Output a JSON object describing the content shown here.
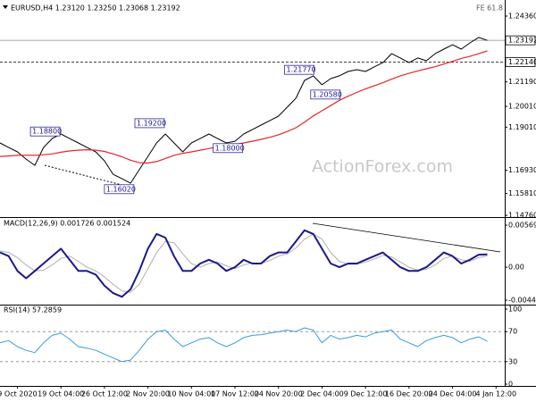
{
  "chart_data": [
    {
      "type": "line",
      "title": "EURUSD,H4  1.23120 1.23250 1.23068 1.23192",
      "note": "FE 61.8",
      "watermark": "ActionForex.com",
      "xlim": [
        0,
        58
      ],
      "ylim": [
        1.1472,
        1.2492
      ],
      "yticks": [
        {
          "value": 1.2436,
          "label": "1.24360"
        },
        {
          "value": 1.2119,
          "label": "1.21190"
        },
        {
          "value": 1.2001,
          "label": "1.20010"
        },
        {
          "value": 1.1901,
          "label": "1.19010"
        },
        {
          "value": 1.1693,
          "label": "1.16930"
        },
        {
          "value": 1.1581,
          "label": "1.15810"
        },
        {
          "value": 1.1476,
          "label": "1.14760"
        }
      ],
      "levels": [
        {
          "value": 1.23192,
          "label": "1.23192",
          "style": "solid"
        },
        {
          "value": 1.2214,
          "label": "1.22140",
          "style": "dashed"
        }
      ],
      "annotations": [
        {
          "x": 3.5,
          "value": 1.188,
          "label": "1.18800"
        },
        {
          "x": 12,
          "value": 1.1602,
          "label": "1.16020"
        },
        {
          "x": 15.5,
          "value": 1.192,
          "label": "1.19200"
        },
        {
          "x": 24.5,
          "value": 1.18,
          "label": "1.18000"
        },
        {
          "x": 32.7,
          "value": 1.2177,
          "label": "1.21770"
        },
        {
          "x": 35.7,
          "value": 1.2058,
          "label": "1.20580"
        }
      ],
      "series": [
        {
          "color": "#000000",
          "width": 1,
          "values": [
            1.1825,
            1.1803,
            1.1782,
            1.1747,
            1.1717,
            1.1803,
            1.1846,
            1.1868,
            1.1846,
            1.1825,
            1.1803,
            1.1782,
            1.1739,
            1.1674,
            1.1653,
            1.1631,
            1.1696,
            1.176,
            1.1825,
            1.1868,
            1.1825,
            1.1782,
            1.1825,
            1.1846,
            1.1868,
            1.1846,
            1.1825,
            1.1833,
            1.1868,
            1.1889,
            1.1911,
            1.1932,
            1.1954,
            1.1997,
            1.204,
            1.2126,
            1.2148,
            1.2105,
            1.2135,
            1.2148,
            1.2169,
            1.2178,
            1.2169,
            1.2191,
            1.2212,
            1.2255,
            1.2234,
            1.2212,
            1.2234,
            1.2221,
            1.2255,
            1.2277,
            1.2298,
            1.2277,
            1.2307,
            1.2333,
            1.2319
          ]
        },
        {
          "color": "#e8262a",
          "width": 1.2,
          "values": [
            1.176,
            1.1762,
            1.1765,
            1.1766,
            1.1765,
            1.1768,
            1.1772,
            1.178,
            1.1786,
            1.179,
            1.1792,
            1.179,
            1.1784,
            1.1772,
            1.1758,
            1.1742,
            1.173,
            1.1728,
            1.1735,
            1.175,
            1.1765,
            1.1775,
            1.1782,
            1.179,
            1.1798,
            1.1806,
            1.1812,
            1.1818,
            1.1825,
            1.1833,
            1.1842,
            1.1852,
            1.1864,
            1.188,
            1.1898,
            1.1925,
            1.1955,
            1.198,
            1.2005,
            1.203,
            1.205,
            1.2068,
            1.2085,
            1.21,
            1.2115,
            1.2132,
            1.2148,
            1.216,
            1.2172,
            1.2182,
            1.2192,
            1.2205,
            1.2218,
            1.2232,
            1.2242,
            1.2255,
            1.2268
          ]
        }
      ]
    },
    {
      "type": "line",
      "title": "MACD(12,26,9) 0.001726 0.001524",
      "xlim": [
        0,
        58
      ],
      "ylim": [
        -0.00494,
        0.00642
      ],
      "yticks": [
        0.00569,
        {
          "value": 0,
          "label": "0.00"
        },
        -0.00446
      ],
      "series": [
        {
          "color": "#b0b0b0",
          "width": 1,
          "values": [
            0.0022,
            0.002,
            0.0013,
            0.0003,
            -0.0005,
            -0.0004,
            0.0003,
            0.0012,
            0.0015,
            0.0008,
            0,
            -0.0005,
            -0.0013,
            -0.0023,
            -0.0032,
            -0.0034,
            -0.0023,
            -0.0002,
            0.002,
            0.0035,
            0.0033,
            0.0018,
            0.0005,
            0,
            0.0005,
            0.0007,
            0.0002,
            -0.0002,
            0.0003,
            0.0006,
            0.0005,
            0.0009,
            0.0015,
            0.0018,
            0.0026,
            0.0038,
            0.0045,
            0.0038,
            0.002,
            0.0008,
            0.0004,
            0.0004,
            0.0007,
            0.0011,
            0.0016,
            0.0014,
            0.0007,
            0,
            -0.0004,
            -0.0003,
            0.0003,
            0.0012,
            0.0015,
            0.001,
            0.0008,
            0.0013,
            0.001524
          ]
        },
        {
          "color": "#1a1a8c",
          "width": 2,
          "values": [
            0.002,
            0.0015,
            -0.0005,
            -0.0015,
            -0.0005,
            0.0005,
            0.0015,
            0.0025,
            0.001,
            -0.0005,
            -0.0005,
            -0.001,
            -0.0025,
            -0.0035,
            -0.004,
            -0.003,
            -0.0005,
            0.0025,
            0.0045,
            0.004,
            0.0015,
            -0.0005,
            -0.0005,
            0.0005,
            0.001,
            0.0005,
            -0.0005,
            0,
            0.001,
            0.0005,
            0.0005,
            0.0015,
            0.002,
            0.002,
            0.0035,
            0.005,
            0.0045,
            0.0025,
            0.0005,
            0,
            0.0005,
            0.0005,
            0.001,
            0.0015,
            0.002,
            0.001,
            0,
            -0.0005,
            -0.0005,
            0,
            0.001,
            0.002,
            0.0015,
            0.0005,
            0.001,
            0.0017,
            0.001726
          ]
        }
      ]
    },
    {
      "type": "line",
      "title": "RSI(14) 57.2859",
      "xlim": [
        0,
        58
      ],
      "ylim": [
        -2.4,
        103.6
      ],
      "yticks": [
        100,
        70,
        30,
        0
      ],
      "xticks": [
        {
          "value": 2,
          "label": "9 Oct 2020"
        },
        {
          "value": 7,
          "label": "19 Oct 04:00"
        },
        {
          "value": 12,
          "label": "26 Oct 12:00"
        },
        {
          "value": 17,
          "label": "2 Nov 20:00"
        },
        {
          "value": 22,
          "label": "10 Nov 04:00"
        },
        {
          "value": 27,
          "label": "17 Nov 12:00"
        },
        {
          "value": 32,
          "label": "24 Nov 20:00"
        },
        {
          "value": 37,
          "label": "2 Dec 04:00"
        },
        {
          "value": 42,
          "label": "9 Dec 12:00"
        },
        {
          "value": 47,
          "label": "16 Dec 20:00"
        },
        {
          "value": 52,
          "label": "24 Dec 04:00"
        },
        {
          "value": 57,
          "label": "4 Jan 12:00"
        }
      ],
      "series": [
        {
          "color": "#3a9be0",
          "width": 1,
          "values": [
            55,
            58,
            50,
            45,
            42,
            55,
            65,
            68,
            60,
            50,
            48,
            45,
            40,
            35,
            30,
            32,
            45,
            60,
            70,
            72,
            60,
            50,
            55,
            60,
            62,
            55,
            50,
            55,
            62,
            65,
            66,
            68,
            70,
            72,
            70,
            75,
            72,
            55,
            65,
            60,
            62,
            65,
            63,
            68,
            70,
            72,
            60,
            55,
            50,
            58,
            62,
            65,
            62,
            55,
            60,
            63,
            57.2859
          ]
        }
      ]
    }
  ]
}
